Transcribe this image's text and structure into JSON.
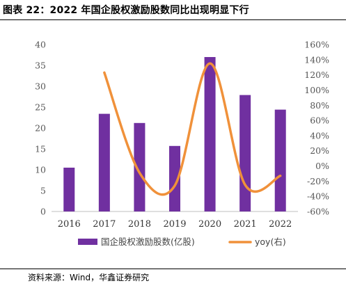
{
  "title": "图表 22：2022 年国企股权激励股数同比出现明显下行",
  "source": "资料来源：Wind，华鑫证券研究",
  "chart_data": {
    "type": "bar",
    "categories": [
      "2016",
      "2017",
      "2018",
      "2019",
      "2020",
      "2021",
      "2022"
    ],
    "series": [
      {
        "name": "国企股权激励股数(亿股)",
        "type": "bar",
        "axis": "left",
        "color": "#7030A0",
        "values": [
          10.5,
          23.4,
          21.2,
          15.7,
          37.0,
          27.9,
          24.4
        ]
      },
      {
        "name": "yoy(右)",
        "type": "line",
        "axis": "right",
        "color": "#F0913A",
        "values": [
          null,
          123,
          -9,
          -26,
          135,
          -25,
          -13
        ]
      }
    ],
    "left_axis": {
      "ylim": [
        0,
        40
      ],
      "ticks": [
        "0",
        "5",
        "10",
        "15",
        "20",
        "25",
        "30",
        "35",
        "40"
      ]
    },
    "right_axis": {
      "ylim": [
        -60,
        160
      ],
      "ticks": [
        "-60%",
        "-40%",
        "-20%",
        "0%",
        "20%",
        "40%",
        "60%",
        "80%",
        "100%",
        "120%",
        "140%",
        "160%"
      ]
    },
    "grid": false,
    "legend_position": "bottom"
  }
}
